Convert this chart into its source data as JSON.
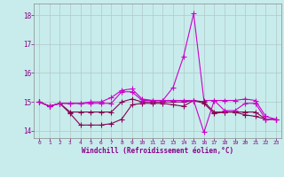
{
  "xlabel": "Windchill (Refroidissement éolien,°C)",
  "bg_color": "#c8ecec",
  "grid_color": "#b0c8c8",
  "line_color_bright": "#cc00cc",
  "line_color_dark": "#880055",
  "axis_color": "#888888",
  "tick_color": "#880088",
  "xlim": [
    -0.5,
    23.5
  ],
  "ylim": [
    13.75,
    18.4
  ],
  "yticks": [
    14,
    15,
    16,
    17,
    18
  ],
  "xtick_labels": [
    "0",
    "1",
    "2",
    "3",
    "4",
    "5",
    "6",
    "7",
    "8",
    "9",
    "10",
    "11",
    "12",
    "13",
    "14",
    "15",
    "16",
    "17",
    "18",
    "19",
    "20",
    "21",
    "22",
    "23"
  ],
  "series1_x": [
    0,
    1,
    2,
    3,
    4,
    5,
    6,
    7,
    8,
    9,
    10,
    11,
    12,
    13,
    14,
    15,
    16,
    17,
    18,
    19,
    20,
    21,
    22,
    23
  ],
  "series1_y": [
    15.0,
    14.85,
    14.95,
    14.6,
    14.2,
    14.2,
    14.2,
    14.25,
    14.4,
    14.9,
    14.95,
    14.95,
    14.95,
    14.9,
    14.85,
    15.05,
    14.95,
    14.6,
    14.65,
    14.65,
    14.55,
    14.5,
    14.4,
    14.4
  ],
  "series2_x": [
    0,
    1,
    2,
    3,
    4,
    5,
    6,
    7,
    8,
    9,
    10,
    11,
    12,
    13,
    14,
    15,
    16,
    17,
    18,
    19,
    20,
    21,
    22,
    23
  ],
  "series2_y": [
    15.0,
    14.85,
    14.95,
    14.95,
    14.95,
    15.0,
    15.0,
    15.15,
    15.4,
    15.45,
    15.1,
    15.05,
    15.05,
    15.5,
    16.55,
    18.05,
    15.05,
    15.05,
    15.05,
    15.05,
    15.1,
    15.05,
    14.5,
    14.4
  ],
  "series3_x": [
    0,
    1,
    2,
    3,
    4,
    5,
    6,
    7,
    8,
    9,
    10,
    11,
    12,
    13,
    14,
    15,
    16,
    17,
    18,
    19,
    20,
    21,
    22,
    23
  ],
  "series3_y": [
    15.0,
    14.85,
    14.95,
    14.65,
    14.65,
    14.65,
    14.65,
    14.65,
    15.0,
    15.1,
    15.0,
    15.0,
    15.0,
    15.0,
    15.0,
    15.05,
    15.0,
    14.65,
    14.65,
    14.65,
    14.65,
    14.65,
    14.4,
    14.4
  ],
  "series4_x": [
    0,
    1,
    2,
    3,
    4,
    5,
    6,
    7,
    8,
    9,
    10,
    11,
    12,
    13,
    14,
    15,
    16,
    17,
    18,
    19,
    20,
    21,
    22,
    23
  ],
  "series4_y": [
    15.0,
    14.85,
    14.95,
    14.95,
    14.95,
    14.95,
    14.95,
    14.95,
    15.35,
    15.35,
    15.05,
    15.05,
    15.05,
    15.05,
    15.05,
    15.05,
    13.95,
    15.05,
    14.7,
    14.7,
    14.95,
    14.95,
    14.4,
    14.4
  ]
}
